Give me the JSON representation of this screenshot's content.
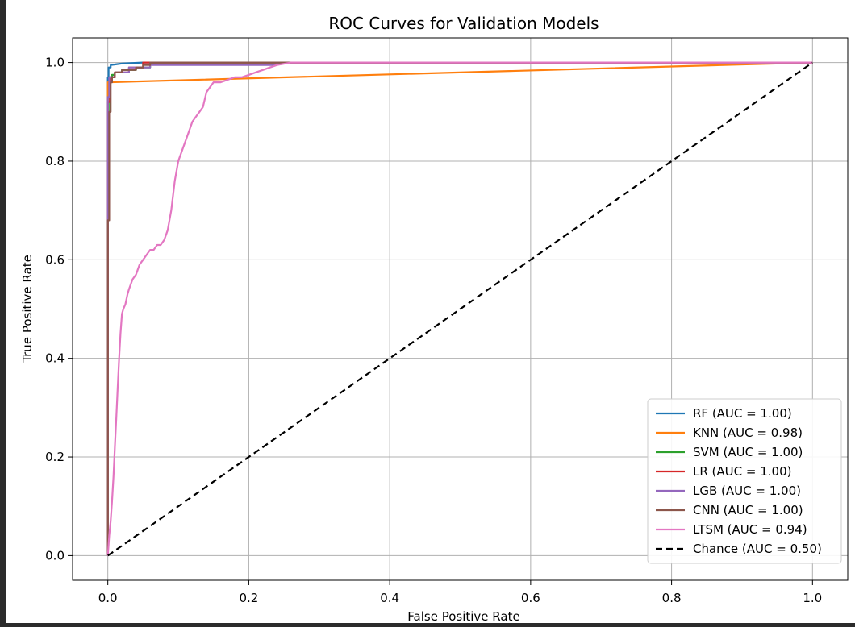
{
  "chart_data": {
    "type": "line",
    "title": "ROC Curves for Validation Models",
    "xlabel": "False Positive Rate",
    "ylabel": "True Positive Rate",
    "xlim": [
      -0.05,
      1.05
    ],
    "ylim": [
      -0.05,
      1.05
    ],
    "xticks": [
      0.0,
      0.2,
      0.4,
      0.6,
      0.8,
      1.0
    ],
    "yticks": [
      0.0,
      0.2,
      0.4,
      0.6,
      0.8,
      1.0
    ],
    "xtick_labels": [
      "0.0",
      "0.2",
      "0.4",
      "0.6",
      "0.8",
      "1.0"
    ],
    "ytick_labels": [
      "0.0",
      "0.2",
      "0.4",
      "0.6",
      "0.8",
      "1.0"
    ],
    "grid": true,
    "legend_position": "lower-right",
    "series": [
      {
        "name": "RF (AUC = 1.00)",
        "color": "#1f77b4",
        "dash": "solid",
        "x": [
          0,
          0,
          0.001,
          0.001,
          0.004,
          0.004,
          0.01,
          0.02,
          0.05,
          1.0
        ],
        "y": [
          0,
          0.97,
          0.97,
          0.99,
          0.99,
          0.995,
          0.996,
          0.998,
          1.0,
          1.0
        ]
      },
      {
        "name": "KNN (AUC = 0.98)",
        "color": "#ff7f0e",
        "dash": "solid",
        "x": [
          0,
          0,
          1.0
        ],
        "y": [
          0,
          0.96,
          1.0
        ]
      },
      {
        "name": "SVM (AUC = 1.00)",
        "color": "#2ca02c",
        "dash": "solid",
        "x": [
          0,
          0,
          0.003,
          0.003,
          0.006,
          0.006,
          0.01,
          0.01,
          0.02,
          0.02,
          0.04,
          0.04,
          0.06,
          0.06,
          1.0
        ],
        "y": [
          0,
          0.9,
          0.9,
          0.97,
          0.97,
          0.975,
          0.975,
          0.98,
          0.98,
          0.985,
          0.985,
          0.99,
          0.99,
          1.0,
          1.0
        ]
      },
      {
        "name": "LR (AUC = 1.00)",
        "color": "#d62728",
        "dash": "solid",
        "x": [
          0,
          0,
          0.003,
          0.003,
          0.01,
          0.01,
          0.03,
          0.03,
          0.05,
          0.05,
          1.0
        ],
        "y": [
          0,
          0.92,
          0.92,
          0.97,
          0.97,
          0.98,
          0.98,
          0.99,
          0.99,
          1.0,
          1.0
        ]
      },
      {
        "name": "LGB (AUC = 1.00)",
        "color": "#9467bd",
        "dash": "solid",
        "x": [
          0,
          0,
          0.002,
          0.002,
          0.01,
          0.01,
          0.03,
          0.03,
          0.06,
          0.06,
          0.24,
          0.24,
          1.0
        ],
        "y": [
          0,
          0.93,
          0.93,
          0.97,
          0.97,
          0.98,
          0.98,
          0.99,
          0.99,
          0.995,
          0.995,
          1.0,
          1.0
        ]
      },
      {
        "name": "CNN (AUC = 1.00)",
        "color": "#8c564b",
        "dash": "solid",
        "x": [
          0,
          0,
          0.002,
          0.002,
          0.004,
          0.004,
          0.006,
          0.006,
          0.01,
          0.01,
          0.02,
          0.02,
          0.04,
          0.04,
          0.05,
          0.05,
          0.06,
          0.06,
          1.0
        ],
        "y": [
          0,
          0.68,
          0.68,
          0.9,
          0.9,
          0.96,
          0.96,
          0.97,
          0.97,
          0.98,
          0.98,
          0.985,
          0.985,
          0.99,
          0.99,
          0.995,
          0.995,
          1.0,
          1.0
        ]
      },
      {
        "name": "LTSM (AUC = 0.94)",
        "color": "#e377c2",
        "dash": "solid",
        "x": [
          0,
          0.002,
          0.004,
          0.006,
          0.008,
          0.01,
          0.012,
          0.014,
          0.016,
          0.018,
          0.02,
          0.022,
          0.025,
          0.028,
          0.03,
          0.035,
          0.04,
          0.045,
          0.05,
          0.055,
          0.06,
          0.065,
          0.07,
          0.075,
          0.08,
          0.085,
          0.09,
          0.095,
          0.1,
          0.105,
          0.11,
          0.115,
          0.12,
          0.125,
          0.13,
          0.135,
          0.14,
          0.145,
          0.15,
          0.16,
          0.17,
          0.18,
          0.19,
          0.2,
          0.21,
          0.22,
          0.23,
          0.24,
          0.26,
          0.3,
          1.0
        ],
        "y": [
          0,
          0.04,
          0.07,
          0.11,
          0.16,
          0.22,
          0.28,
          0.34,
          0.4,
          0.45,
          0.49,
          0.5,
          0.51,
          0.53,
          0.54,
          0.56,
          0.57,
          0.59,
          0.6,
          0.61,
          0.62,
          0.62,
          0.63,
          0.63,
          0.64,
          0.66,
          0.7,
          0.76,
          0.8,
          0.82,
          0.84,
          0.86,
          0.88,
          0.89,
          0.9,
          0.91,
          0.94,
          0.95,
          0.96,
          0.96,
          0.965,
          0.97,
          0.97,
          0.975,
          0.98,
          0.985,
          0.99,
          0.995,
          1.0,
          1.0,
          1.0
        ]
      },
      {
        "name": "Chance (AUC = 0.50)",
        "color": "#000000",
        "dash": "dashed",
        "x": [
          0,
          1
        ],
        "y": [
          0,
          1
        ]
      }
    ]
  }
}
